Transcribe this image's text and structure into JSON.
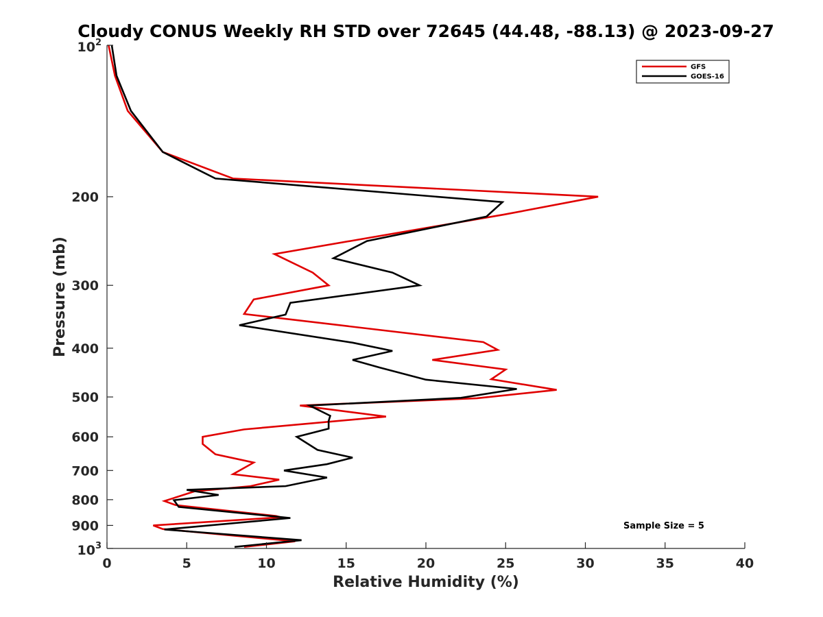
{
  "chart_data": {
    "type": "line",
    "title": "Cloudy CONUS Weekly RH STD over 72645 (44.48, -88.13) @ 2023-09-27",
    "xlabel": "Relative Humidity (%)",
    "ylabel": "Pressure (mb)",
    "xlim": [
      0,
      40
    ],
    "ylim": [
      100,
      1000
    ],
    "y_scale": "log",
    "y_reversed": true,
    "x_ticks": [
      0,
      5,
      10,
      15,
      20,
      25,
      30,
      35,
      40
    ],
    "x_tick_labels": [
      "0",
      "5",
      "10",
      "15",
      "20",
      "25",
      "30",
      "35",
      "40"
    ],
    "y_ticks": [
      {
        "value": 100,
        "base": "10",
        "exp": "2"
      },
      {
        "value": 200,
        "label": "200"
      },
      {
        "value": 300,
        "label": "300"
      },
      {
        "value": 400,
        "label": "400"
      },
      {
        "value": 500,
        "label": "500"
      },
      {
        "value": 600,
        "label": "600"
      },
      {
        "value": 700,
        "label": "700"
      },
      {
        "value": 800,
        "label": "800"
      },
      {
        "value": 900,
        "label": "900"
      },
      {
        "value": 1000,
        "base": "10",
        "exp": "3"
      }
    ],
    "grid": false,
    "legend_position": "top-right",
    "annotation": "Sample Size = 5",
    "series": [
      {
        "name": "GFS",
        "color": "#e00000",
        "points": [
          [
            0.1,
            100
          ],
          [
            0.5,
            115
          ],
          [
            1.3,
            135
          ],
          [
            3.5,
            163
          ],
          [
            7.9,
            184
          ],
          [
            30.8,
            200
          ],
          [
            24.9,
            217
          ],
          [
            10.5,
            260
          ],
          [
            12.9,
            283
          ],
          [
            13.9,
            300
          ],
          [
            9.2,
            320
          ],
          [
            8.6,
            342
          ],
          [
            23.6,
            389
          ],
          [
            24.5,
            403
          ],
          [
            20.4,
            422
          ],
          [
            25.0,
            441
          ],
          [
            24.1,
            461
          ],
          [
            28.2,
            484
          ],
          [
            23.2,
            503
          ],
          [
            12.1,
            520
          ],
          [
            17.5,
            547
          ],
          [
            8.6,
            580
          ],
          [
            6.0,
            600
          ],
          [
            6.0,
            620
          ],
          [
            6.8,
            650
          ],
          [
            9.2,
            675
          ],
          [
            7.9,
            712
          ],
          [
            10.8,
            730
          ],
          [
            9.0,
            752
          ],
          [
            5.5,
            770
          ],
          [
            3.6,
            805
          ],
          [
            4.3,
            820
          ],
          [
            10.6,
            862
          ],
          [
            10.9,
            867
          ],
          [
            2.9,
            900
          ],
          [
            3.5,
            915
          ],
          [
            11.8,
            968
          ],
          [
            8.6,
            993
          ]
        ]
      },
      {
        "name": "GOES-16",
        "color": "#000000",
        "points": [
          [
            0.3,
            100
          ],
          [
            0.6,
            115
          ],
          [
            1.5,
            135
          ],
          [
            3.5,
            163
          ],
          [
            6.8,
            184
          ],
          [
            24.8,
            205
          ],
          [
            23.8,
            219
          ],
          [
            16.3,
            245
          ],
          [
            14.2,
            265
          ],
          [
            17.9,
            283
          ],
          [
            19.6,
            300
          ],
          [
            11.5,
            325
          ],
          [
            11.2,
            343
          ],
          [
            8.3,
            360
          ],
          [
            15.4,
            390
          ],
          [
            17.9,
            405
          ],
          [
            15.4,
            422
          ],
          [
            17.1,
            437
          ],
          [
            20.0,
            462
          ],
          [
            25.7,
            482
          ],
          [
            22.2,
            502
          ],
          [
            12.7,
            520
          ],
          [
            14.0,
            545
          ],
          [
            13.9,
            558
          ],
          [
            13.9,
            578
          ],
          [
            11.9,
            600
          ],
          [
            13.2,
            637
          ],
          [
            15.4,
            660
          ],
          [
            13.8,
            680
          ],
          [
            11.1,
            700
          ],
          [
            13.8,
            723
          ],
          [
            11.2,
            752
          ],
          [
            5.0,
            765
          ],
          [
            7.0,
            783
          ],
          [
            4.2,
            802
          ],
          [
            4.5,
            827
          ],
          [
            10.4,
            863
          ],
          [
            11.5,
            870
          ],
          [
            3.6,
            917
          ],
          [
            12.2,
            963
          ],
          [
            8.0,
            993
          ]
        ]
      }
    ]
  }
}
